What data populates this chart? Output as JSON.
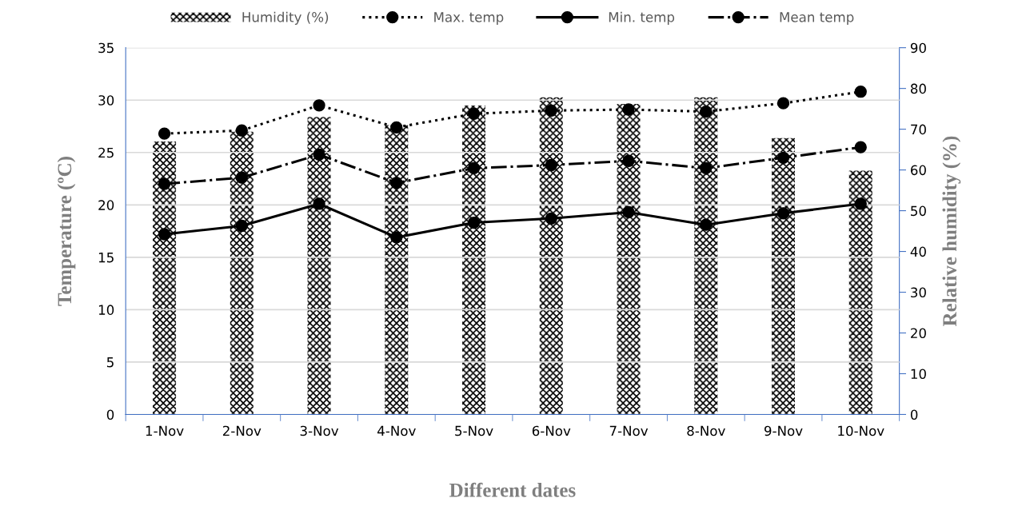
{
  "chart_data": {
    "type": "line",
    "xlabel": "Different dates",
    "ylabel": "Temperature (ºC)",
    "y2label": "Relative humidity (%)",
    "categories": [
      "1-Nov",
      "2-Nov",
      "3-Nov",
      "4-Nov",
      "5-Nov",
      "6-Nov",
      "7-Nov",
      "8-Nov",
      "9-Nov",
      "10-Nov"
    ],
    "series": [
      {
        "name": "Humidity (%)",
        "type": "bar",
        "axis": "y2",
        "color": "#000000",
        "values": [
          67,
          69.4,
          73,
          71,
          75.8,
          77.8,
          76.2,
          77.8,
          67.8,
          59.8
        ]
      },
      {
        "name": "Max. temp",
        "color": "#000000",
        "line_style": "dotted",
        "marker": "circle",
        "values": [
          26.8,
          27.1,
          29.5,
          27.4,
          28.7,
          29.0,
          29.1,
          28.9,
          29.7,
          30.8
        ]
      },
      {
        "name": "Min. temp",
        "color": "#000000",
        "line_style": "solid",
        "marker": "circle",
        "values": [
          17.2,
          18.0,
          20.1,
          16.9,
          18.3,
          18.7,
          19.3,
          18.1,
          19.2,
          20.1
        ]
      },
      {
        "name": "Mean temp",
        "color": "#000000",
        "line_style": "dashdot",
        "marker": "circle",
        "values": [
          22.0,
          22.6,
          24.8,
          22.1,
          23.5,
          23.8,
          24.2,
          23.5,
          24.5,
          25.5
        ]
      }
    ],
    "ylim": [
      0,
      35
    ],
    "yticks": [
      0,
      5,
      10,
      15,
      20,
      25,
      30,
      35
    ],
    "y2lim": [
      0,
      90
    ],
    "y2ticks": [
      0,
      10,
      20,
      30,
      40,
      50,
      60,
      70,
      80,
      90
    ],
    "grid": "y",
    "legend": "top"
  }
}
